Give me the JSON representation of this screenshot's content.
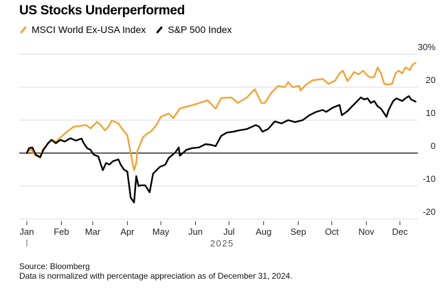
{
  "title": "US Stocks Underperformed",
  "footer": {
    "source": "Source: Bloomberg",
    "note": "Data is normalized with percentage appreciation as of December 31, 2024."
  },
  "chart_data": {
    "type": "line",
    "title": "US Stocks Underperformed",
    "xlabel": "2025",
    "ylabel": "",
    "y_unit": "%",
    "ylim": [
      -20,
      30
    ],
    "yticks": [
      30,
      20,
      10,
      0,
      -10,
      -20
    ],
    "ytick_labels": [
      "30%",
      "20",
      "10",
      "0",
      "-10",
      "-20"
    ],
    "x_unit": "days since 2024-12-31",
    "xlim": [
      0,
      365
    ],
    "xticks": [
      {
        "label": "Jan",
        "day": 0
      },
      {
        "label": "Feb",
        "day": 31
      },
      {
        "label": "Mar",
        "day": 59
      },
      {
        "label": "Apr",
        "day": 90
      },
      {
        "label": "May",
        "day": 120
      },
      {
        "label": "Jun",
        "day": 151
      },
      {
        "label": "Jul",
        "day": 181
      },
      {
        "label": "Aug",
        "day": 212
      },
      {
        "label": "Sep",
        "day": 243
      },
      {
        "label": "Oct",
        "day": 273
      },
      {
        "label": "Nov",
        "day": 304
      },
      {
        "label": "Dec",
        "day": 334
      }
    ],
    "year_label": "2025",
    "grid": true,
    "legend_position": "top-left",
    "series": [
      {
        "name": "MSCI World Ex-USA Index",
        "color": "#f7a12f",
        "points": [
          [
            0,
            0
          ],
          [
            4,
            1.2
          ],
          [
            7,
            -0.5
          ],
          [
            12,
            -1.5
          ],
          [
            14,
            1
          ],
          [
            18,
            2.5
          ],
          [
            22,
            4
          ],
          [
            26,
            3.5
          ],
          [
            31,
            5
          ],
          [
            36,
            6.5
          ],
          [
            42,
            8
          ],
          [
            47,
            8.2
          ],
          [
            53,
            8.5
          ],
          [
            57,
            7.5
          ],
          [
            63,
            9.5
          ],
          [
            66,
            8.5
          ],
          [
            70,
            6.9
          ],
          [
            73,
            8
          ],
          [
            76,
            9.8
          ],
          [
            79,
            9.5
          ],
          [
            82,
            9
          ],
          [
            85,
            7.5
          ],
          [
            90,
            5.4
          ],
          [
            93,
            0
          ],
          [
            96,
            -5.2
          ],
          [
            98,
            -3
          ],
          [
            99,
            0.6
          ],
          [
            104,
            4.8
          ],
          [
            108,
            6
          ],
          [
            111,
            6.5
          ],
          [
            116,
            8.5
          ],
          [
            120,
            11
          ],
          [
            127,
            12
          ],
          [
            131,
            10.6
          ],
          [
            137,
            13.5
          ],
          [
            142,
            14
          ],
          [
            149,
            14.6
          ],
          [
            156,
            15.4
          ],
          [
            162,
            16
          ],
          [
            169,
            13.5
          ],
          [
            174,
            16.7
          ],
          [
            183,
            16.9
          ],
          [
            189,
            15.2
          ],
          [
            197,
            16.9
          ],
          [
            204,
            19.4
          ],
          [
            210,
            15.2
          ],
          [
            213,
            15.2
          ],
          [
            219,
            18.3
          ],
          [
            225,
            20.4
          ],
          [
            231,
            20
          ],
          [
            234,
            21.5
          ],
          [
            238,
            20
          ],
          [
            244,
            20.4
          ],
          [
            245,
            19
          ],
          [
            250,
            20.8
          ],
          [
            256,
            22.1
          ],
          [
            265,
            22.5
          ],
          [
            270,
            21
          ],
          [
            276,
            22
          ],
          [
            280,
            24.2
          ],
          [
            283,
            25
          ],
          [
            287,
            21.9
          ],
          [
            290,
            23.1
          ],
          [
            293,
            24.6
          ],
          [
            297,
            23.9
          ],
          [
            301,
            25
          ],
          [
            305,
            23.5
          ],
          [
            308,
            22.9
          ],
          [
            311,
            23.1
          ],
          [
            314,
            26
          ],
          [
            317,
            24.2
          ],
          [
            320,
            21
          ],
          [
            323,
            20.8
          ],
          [
            327,
            21
          ],
          [
            330,
            24.2
          ],
          [
            333,
            25
          ],
          [
            336,
            24.2
          ],
          [
            339,
            26
          ],
          [
            343,
            25.2
          ],
          [
            345,
            26.7
          ],
          [
            348,
            27.4
          ]
        ]
      },
      {
        "name": "S&P 500 Index",
        "color": "#000000",
        "points": [
          [
            0,
            0
          ],
          [
            2,
            1.5
          ],
          [
            5,
            1.7
          ],
          [
            8,
            -0.5
          ],
          [
            12,
            -1.2
          ],
          [
            15,
            1
          ],
          [
            19,
            3
          ],
          [
            22,
            4
          ],
          [
            26,
            3
          ],
          [
            30,
            4
          ],
          [
            34,
            3.5
          ],
          [
            39,
            4.5
          ],
          [
            44,
            3.8
          ],
          [
            49,
            4.4
          ],
          [
            51,
            3
          ],
          [
            54,
            1.5
          ],
          [
            57,
            1
          ],
          [
            60,
            -0.5
          ],
          [
            64,
            -1
          ],
          [
            68,
            -5.2
          ],
          [
            71,
            -3
          ],
          [
            74,
            -3.5
          ],
          [
            77,
            -2.5
          ],
          [
            82,
            -1.9
          ],
          [
            84,
            -3.5
          ],
          [
            87,
            -5
          ],
          [
            90,
            -5.6
          ],
          [
            93,
            -13.5
          ],
          [
            96,
            -15
          ],
          [
            98,
            -7
          ],
          [
            100,
            -10
          ],
          [
            102,
            -9.8
          ],
          [
            106,
            -9.8
          ],
          [
            110,
            -11.9
          ],
          [
            113,
            -6.3
          ],
          [
            119,
            -4.2
          ],
          [
            124,
            -3.5
          ],
          [
            127,
            -1.5
          ],
          [
            133,
            0.2
          ],
          [
            136,
            1.7
          ],
          [
            137,
            -0.8
          ],
          [
            143,
            1
          ],
          [
            148,
            1.5
          ],
          [
            154,
            1.7
          ],
          [
            160,
            2.7
          ],
          [
            165,
            2.5
          ],
          [
            169,
            2.1
          ],
          [
            174,
            5.2
          ],
          [
            179,
            6.2
          ],
          [
            185,
            6.5
          ],
          [
            190,
            6.9
          ],
          [
            197,
            7.3
          ],
          [
            205,
            8.5
          ],
          [
            208,
            8
          ],
          [
            211,
            6.5
          ],
          [
            216,
            7.3
          ],
          [
            222,
            9.6
          ],
          [
            228,
            9
          ],
          [
            234,
            10
          ],
          [
            240,
            9.4
          ],
          [
            247,
            10
          ],
          [
            253,
            11.5
          ],
          [
            259,
            12.5
          ],
          [
            265,
            13.1
          ],
          [
            268,
            12.5
          ],
          [
            274,
            13.8
          ],
          [
            280,
            14.6
          ],
          [
            282,
            11.5
          ],
          [
            287,
            12.7
          ],
          [
            290,
            13.8
          ],
          [
            293,
            14.8
          ],
          [
            299,
            16.9
          ],
          [
            302,
            16.3
          ],
          [
            305,
            16.6
          ],
          [
            308,
            15.2
          ],
          [
            311,
            15.8
          ],
          [
            314,
            14.2
          ],
          [
            317,
            13.5
          ],
          [
            322,
            11
          ],
          [
            324,
            13.1
          ],
          [
            328,
            15.8
          ],
          [
            331,
            16.6
          ],
          [
            336,
            15.8
          ],
          [
            339,
            16.6
          ],
          [
            342,
            17.3
          ],
          [
            344,
            16.3
          ],
          [
            348,
            15.6
          ]
        ]
      }
    ]
  }
}
